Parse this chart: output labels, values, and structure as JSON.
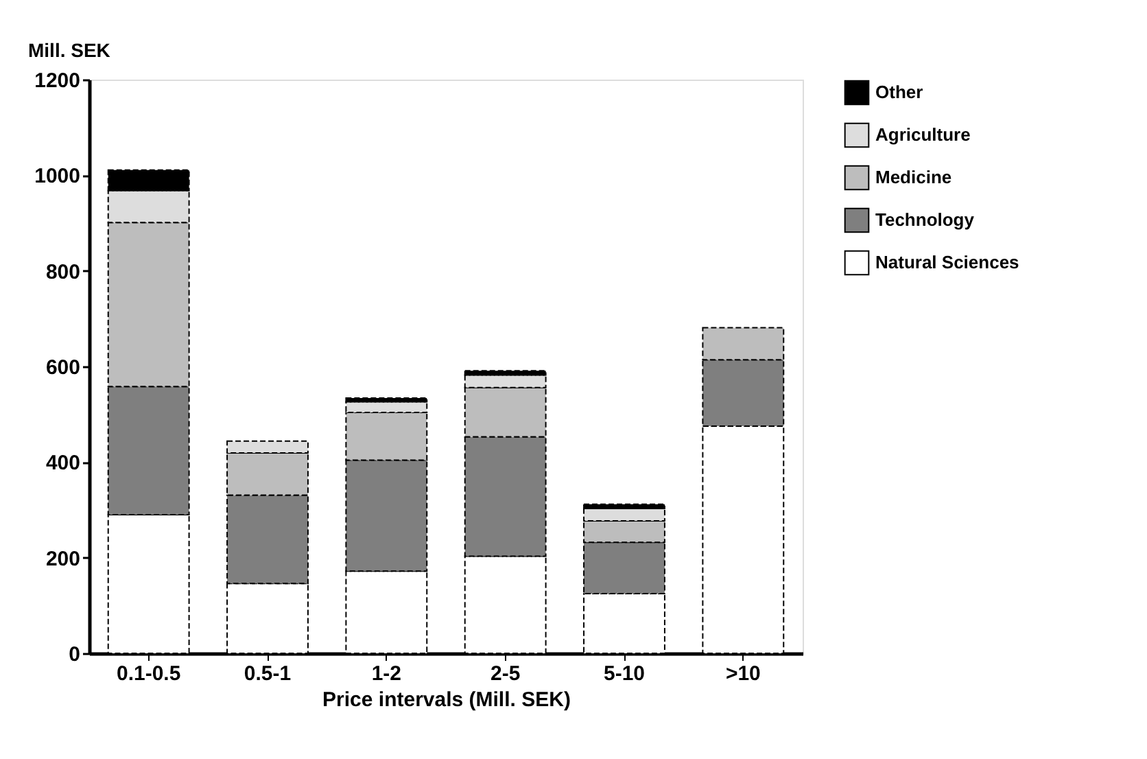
{
  "chart_data": {
    "type": "bar",
    "stacked": true,
    "xlabel": "Price intervals (Mill. SEK)",
    "ylabel": "Mill. SEK",
    "categories": [
      "0.1-0.5",
      "0.5-1",
      "1-2",
      "2-5",
      "5-10",
      ">10"
    ],
    "series": [
      {
        "name": "Natural Sciences",
        "color": "#ffffff",
        "values": [
          290,
          146,
          172,
          203,
          125,
          475
        ]
      },
      {
        "name": "Technology",
        "color": "#7f7f7f",
        "values": [
          268,
          185,
          232,
          250,
          107,
          139
        ]
      },
      {
        "name": "Medicine",
        "color": "#bdbdbd",
        "values": [
          343,
          88,
          100,
          103,
          45,
          67
        ]
      },
      {
        "name": "Agriculture",
        "color": "#dddddd",
        "values": [
          67,
          25,
          22,
          26,
          26,
          null
        ]
      },
      {
        "name": "Other",
        "color": "#000000",
        "values": [
          43,
          null,
          8,
          9,
          9,
          null
        ]
      }
    ],
    "ylim": [
      0,
      1200
    ],
    "yticks": [
      0,
      200,
      400,
      600,
      800,
      1000,
      1200
    ],
    "grid": false,
    "legend": "right"
  }
}
